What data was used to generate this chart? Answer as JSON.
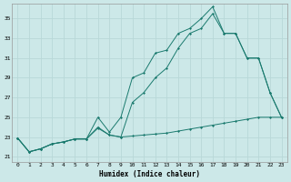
{
  "xlabel": "Humidex (Indice chaleur)",
  "bg_color": "#cce8e8",
  "grid_color": "#b8d8d8",
  "line_color": "#1a7a6e",
  "xlim": [
    -0.5,
    23.5
  ],
  "ylim": [
    20.5,
    36.5
  ],
  "yticks": [
    21,
    23,
    25,
    27,
    29,
    31,
    33,
    35
  ],
  "xticks": [
    0,
    1,
    2,
    3,
    4,
    5,
    6,
    7,
    8,
    9,
    10,
    11,
    12,
    13,
    14,
    15,
    16,
    17,
    18,
    19,
    20,
    21,
    22,
    23
  ],
  "series1_x": [
    0,
    1,
    2,
    3,
    4,
    5,
    6,
    7,
    8,
    9,
    10,
    11,
    12,
    13,
    14,
    15,
    16,
    17,
    18,
    19,
    20,
    21,
    22,
    23
  ],
  "series1_y": [
    22.9,
    21.5,
    21.8,
    22.3,
    22.5,
    22.8,
    22.8,
    23.9,
    23.2,
    23.0,
    23.1,
    23.2,
    23.3,
    23.4,
    23.6,
    23.8,
    24.0,
    24.2,
    24.4,
    24.6,
    24.8,
    25.0,
    25.0,
    25.0
  ],
  "series2_x": [
    0,
    1,
    2,
    3,
    4,
    5,
    6,
    7,
    8,
    9,
    10,
    11,
    12,
    13,
    14,
    15,
    16,
    17,
    18,
    19,
    20,
    21,
    22,
    23
  ],
  "series2_y": [
    22.9,
    21.5,
    21.8,
    22.3,
    22.5,
    22.8,
    22.8,
    25.0,
    23.5,
    25.0,
    29.0,
    29.5,
    31.5,
    31.8,
    33.5,
    34.0,
    35.0,
    36.2,
    33.5,
    33.5,
    31.0,
    31.0,
    27.5,
    25.0
  ],
  "series3_x": [
    0,
    1,
    2,
    3,
    4,
    5,
    6,
    7,
    8,
    9,
    10,
    11,
    12,
    13,
    14,
    15,
    16,
    17,
    18,
    19,
    20,
    21,
    22,
    23
  ],
  "series3_y": [
    22.9,
    21.5,
    21.8,
    22.3,
    22.5,
    22.8,
    22.8,
    24.0,
    23.2,
    23.0,
    26.5,
    27.5,
    29.0,
    30.0,
    32.0,
    33.5,
    34.0,
    35.5,
    33.5,
    33.5,
    31.0,
    31.0,
    27.5,
    25.0
  ]
}
